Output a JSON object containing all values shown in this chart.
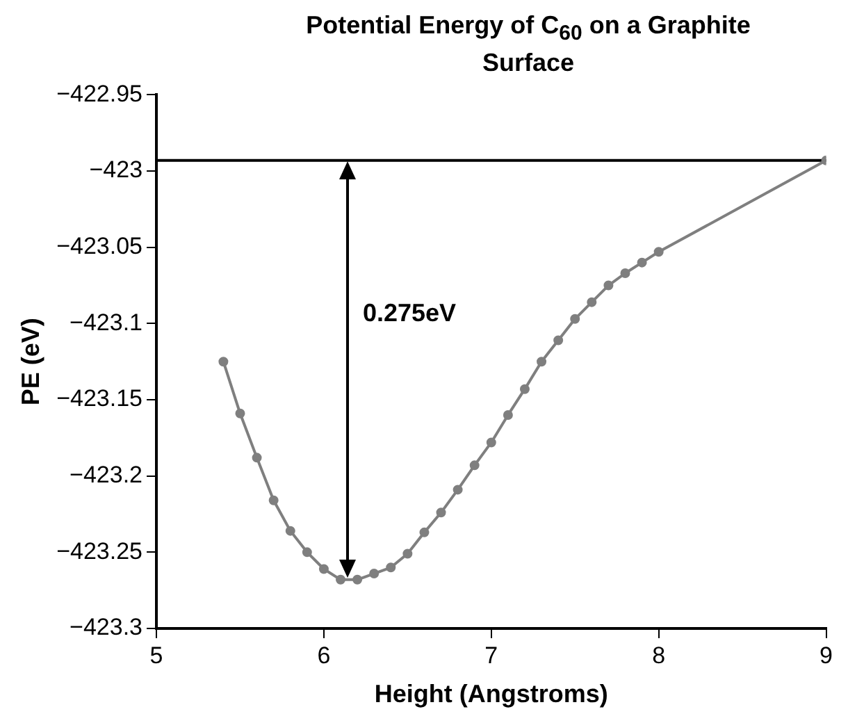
{
  "chart_data": {
    "type": "line",
    "title": "Potential Energy of C$_{60}$ on a Graphite Surface",
    "xlabel": "Height (Angstroms)",
    "ylabel": "PE (eV)",
    "series": [
      {
        "color": "#7f7f7f",
        "x": [
          5.4,
          5.5,
          5.6,
          5.7,
          5.8,
          5.9,
          6.0,
          6.1,
          6.2,
          6.3,
          6.4,
          6.5,
          6.6,
          6.7,
          6.8,
          6.9,
          7.0,
          7.1,
          7.2,
          7.3,
          7.4,
          7.5,
          7.6,
          7.7,
          7.8,
          7.9,
          8.0,
          9.0
        ],
        "values": [
          -423.125,
          -423.159,
          -423.188,
          -423.216,
          -423.236,
          -423.25,
          -423.261,
          -423.268,
          -423.268,
          -423.264,
          -423.26,
          -423.251,
          -423.237,
          -423.224,
          -423.209,
          -423.193,
          -423.178,
          -423.16,
          -423.143,
          -423.125,
          -423.111,
          -423.097,
          -423.086,
          -423.075,
          -423.067,
          -423.06,
          -423.053,
          -422.993
        ]
      }
    ],
    "xlim": [
      5,
      9
    ],
    "xticks": [
      5,
      6,
      7,
      8,
      9
    ],
    "ylim": [
      -423.3,
      -422.95
    ],
    "yticks": [
      {
        "value": -423.3,
        "label": "−423.3"
      },
      {
        "value": -423.25,
        "label": "−423.25"
      },
      {
        "value": -423.2,
        "label": "−423.2"
      },
      {
        "value": -423.15,
        "label": "−423.15"
      },
      {
        "value": -423.1,
        "label": "−423.1"
      },
      {
        "value": -423.05,
        "label": "−423.05"
      },
      {
        "value": -423,
        "label": "−423"
      },
      {
        "value": -422.95,
        "label": "−422.95"
      }
    ],
    "ref_lines": [
      {
        "axis": "y",
        "value": -422.993,
        "color": "#000000"
      }
    ],
    "annotations": [
      "0.275eV"
    ],
    "marker": "circle",
    "line_style": "solid",
    "grid": false,
    "legend": false
  }
}
